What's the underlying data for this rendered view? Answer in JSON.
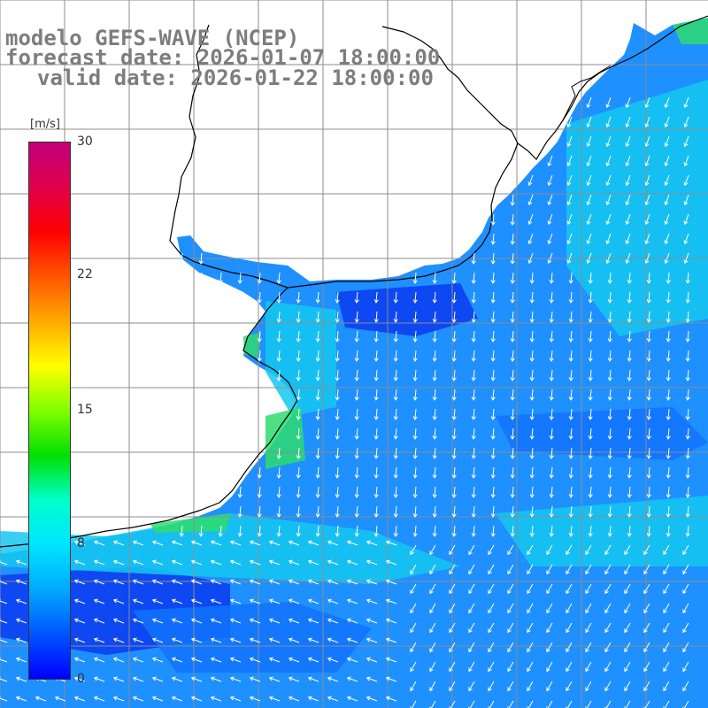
{
  "title": {
    "line1": "modelo GEFS-WAVE (NCEP)",
    "line2": "forecast date: 2026-01-07 18:00:00",
    "line3": "valid date: 2026-01-22 18:00:00"
  },
  "colorbar": {
    "unit": "[m/s]",
    "ticks": [
      {
        "label": "30",
        "value": 30
      },
      {
        "label": "22",
        "value": 22
      },
      {
        "label": "15",
        "value": 15
      },
      {
        "label": "8",
        "value": 8
      },
      {
        "label": "0",
        "value": 0
      }
    ],
    "colors": [
      "#0000ff",
      "#0055ff",
      "#00aaff",
      "#00e5ff",
      "#00ffcc",
      "#00e000",
      "#7fff00",
      "#ffff00",
      "#ffaa00",
      "#ff5500",
      "#ff0000",
      "#e0004a",
      "#c2007a"
    ]
  },
  "map": {
    "land_color": "#ffffff",
    "coast_color": "#000000",
    "grid_color": "#8c8c8c",
    "arrow_color": "#ffffff",
    "field_colors": {
      "very_low": "#0a3cf0",
      "low": "#1273ff",
      "mid": "#1e90ff",
      "high": "#15c8f0",
      "green": "#2edc6e"
    }
  }
}
